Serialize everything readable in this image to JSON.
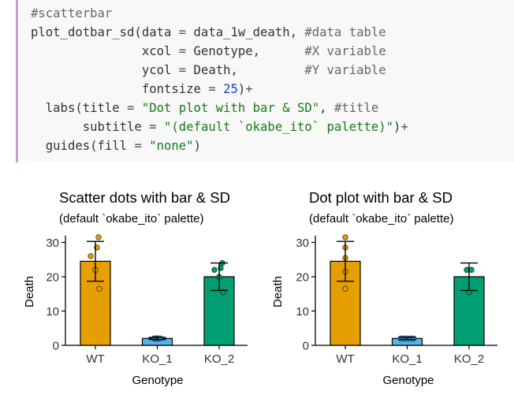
{
  "code": {
    "lines": [
      [
        {
          "t": "#scatterbar",
          "c": "com"
        }
      ],
      [
        {
          "t": "plot_dotbar_sd(data "
        },
        {
          "t": "=",
          "c": "op"
        },
        {
          "t": " data_1w_death, "
        },
        {
          "t": "#data table",
          "c": "com"
        }
      ],
      [
        {
          "t": "               xcol "
        },
        {
          "t": "=",
          "c": "op"
        },
        {
          "t": " Genotype,      "
        },
        {
          "t": "#X variable",
          "c": "com"
        }
      ],
      [
        {
          "t": "               ycol "
        },
        {
          "t": "=",
          "c": "op"
        },
        {
          "t": " Death,         "
        },
        {
          "t": "#Y variable",
          "c": "com"
        }
      ],
      [
        {
          "t": "               fontsize "
        },
        {
          "t": "=",
          "c": "op"
        },
        {
          "t": " "
        },
        {
          "t": "25",
          "c": "num"
        },
        {
          "t": ")"
        },
        {
          "t": "+",
          "c": "op"
        }
      ],
      [
        {
          "t": "  labs(title "
        },
        {
          "t": "=",
          "c": "op"
        },
        {
          "t": " "
        },
        {
          "t": "\"Dot plot with bar & SD\"",
          "c": "str"
        },
        {
          "t": ", "
        },
        {
          "t": "#title",
          "c": "com"
        }
      ],
      [
        {
          "t": "       subtitle "
        },
        {
          "t": "=",
          "c": "op"
        },
        {
          "t": " "
        },
        {
          "t": "\"(default `okabe_ito` palette)\"",
          "c": "str"
        },
        {
          "t": ")"
        },
        {
          "t": "+",
          "c": "op"
        }
      ],
      [
        {
          "t": "  guides(fill "
        },
        {
          "t": "=",
          "c": "op"
        },
        {
          "t": " "
        },
        {
          "t": "\"none\"",
          "c": "str"
        },
        {
          "t": ")"
        }
      ]
    ]
  },
  "colors": {
    "WT": "#E69F00",
    "KO_1": "#56B4E9",
    "KO_2": "#009E73"
  },
  "chart_data": [
    {
      "type": "bar",
      "title": "Scatter dots with bar & SD",
      "subtitle": "(default `okabe_ito` palette)",
      "xlabel": "Genotype",
      "ylabel": "Death",
      "categories": [
        "WT",
        "KO_1",
        "KO_2"
      ],
      "values": [
        24.5,
        2,
        20
      ],
      "sd": [
        5.8,
        0.3,
        4
      ],
      "points": [
        [
          31.5,
          28.5,
          26,
          22,
          16.5
        ],
        [
          2,
          2,
          2,
          2,
          2
        ],
        [
          24,
          22.5,
          22,
          20,
          15.5
        ]
      ],
      "yticks": [
        0,
        10,
        20,
        30
      ],
      "ylim": [
        0,
        32
      ],
      "grid": false
    },
    {
      "type": "bar",
      "title": "Dot plot with bar & SD",
      "subtitle": "(default `okabe_ito` palette)",
      "xlabel": "Genotype",
      "ylabel": "Death",
      "categories": [
        "WT",
        "KO_1",
        "KO_2"
      ],
      "values": [
        24.5,
        2,
        20
      ],
      "sd": [
        5.8,
        0.3,
        4
      ],
      "points": [
        [
          31.5,
          28.5,
          25.5,
          21.5,
          16.5
        ],
        [
          2,
          2,
          2,
          2,
          2
        ],
        [
          22,
          22,
          15.5
        ]
      ],
      "yticks": [
        0,
        10,
        20,
        30
      ],
      "ylim": [
        0,
        32
      ],
      "grid": false
    }
  ]
}
